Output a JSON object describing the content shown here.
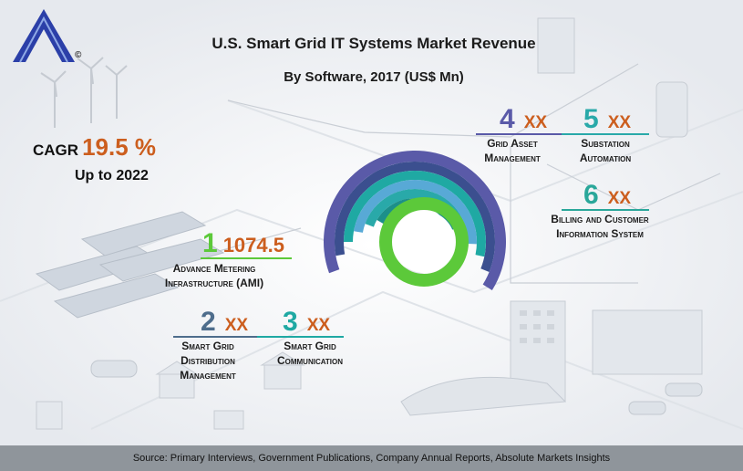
{
  "title": "U.S. Smart Grid IT Systems Market Revenue",
  "subtitle": "By Software, 2017  (US$ Mn)",
  "cagr": {
    "label": "CAGR",
    "value": "19.5 %",
    "period": "Up to 2022"
  },
  "copyright_symbol": "©",
  "footer": "Source: Primary Interviews, Government Publications, Company Annual Reports, Absolute Markets Insights",
  "colors": {
    "accent_orange": "#cc5e1e",
    "segment_1": "#5cc93a",
    "segment_2": "#4e6d8c",
    "segment_3": "#1fa9a3",
    "segment_4": "#5a5aa8",
    "segment_5": "#29a9a9",
    "segment_6": "#2aa79a"
  },
  "chart_data": {
    "type": "table",
    "title": "U.S. Smart Grid IT Systems Market Revenue",
    "subtitle": "By Software, 2017  (US$ Mn)",
    "cagr": "19.5 %",
    "segments": [
      {
        "rank": "1",
        "name": "Advance Metering\nInfrastructure (AMI)",
        "value": "1074.5"
      },
      {
        "rank": "2",
        "name": "Smart Grid\nDistribution\nManagement",
        "value": "XX"
      },
      {
        "rank": "3",
        "name": "Smart Grid\nCommunication",
        "value": "XX"
      },
      {
        "rank": "4",
        "name": "Grid Asset\nManagement",
        "value": "XX"
      },
      {
        "rank": "5",
        "name": "Substation\nAutomation",
        "value": "XX"
      },
      {
        "rank": "6",
        "name": "Billing and Customer\nInformation System",
        "value": "XX"
      }
    ]
  }
}
